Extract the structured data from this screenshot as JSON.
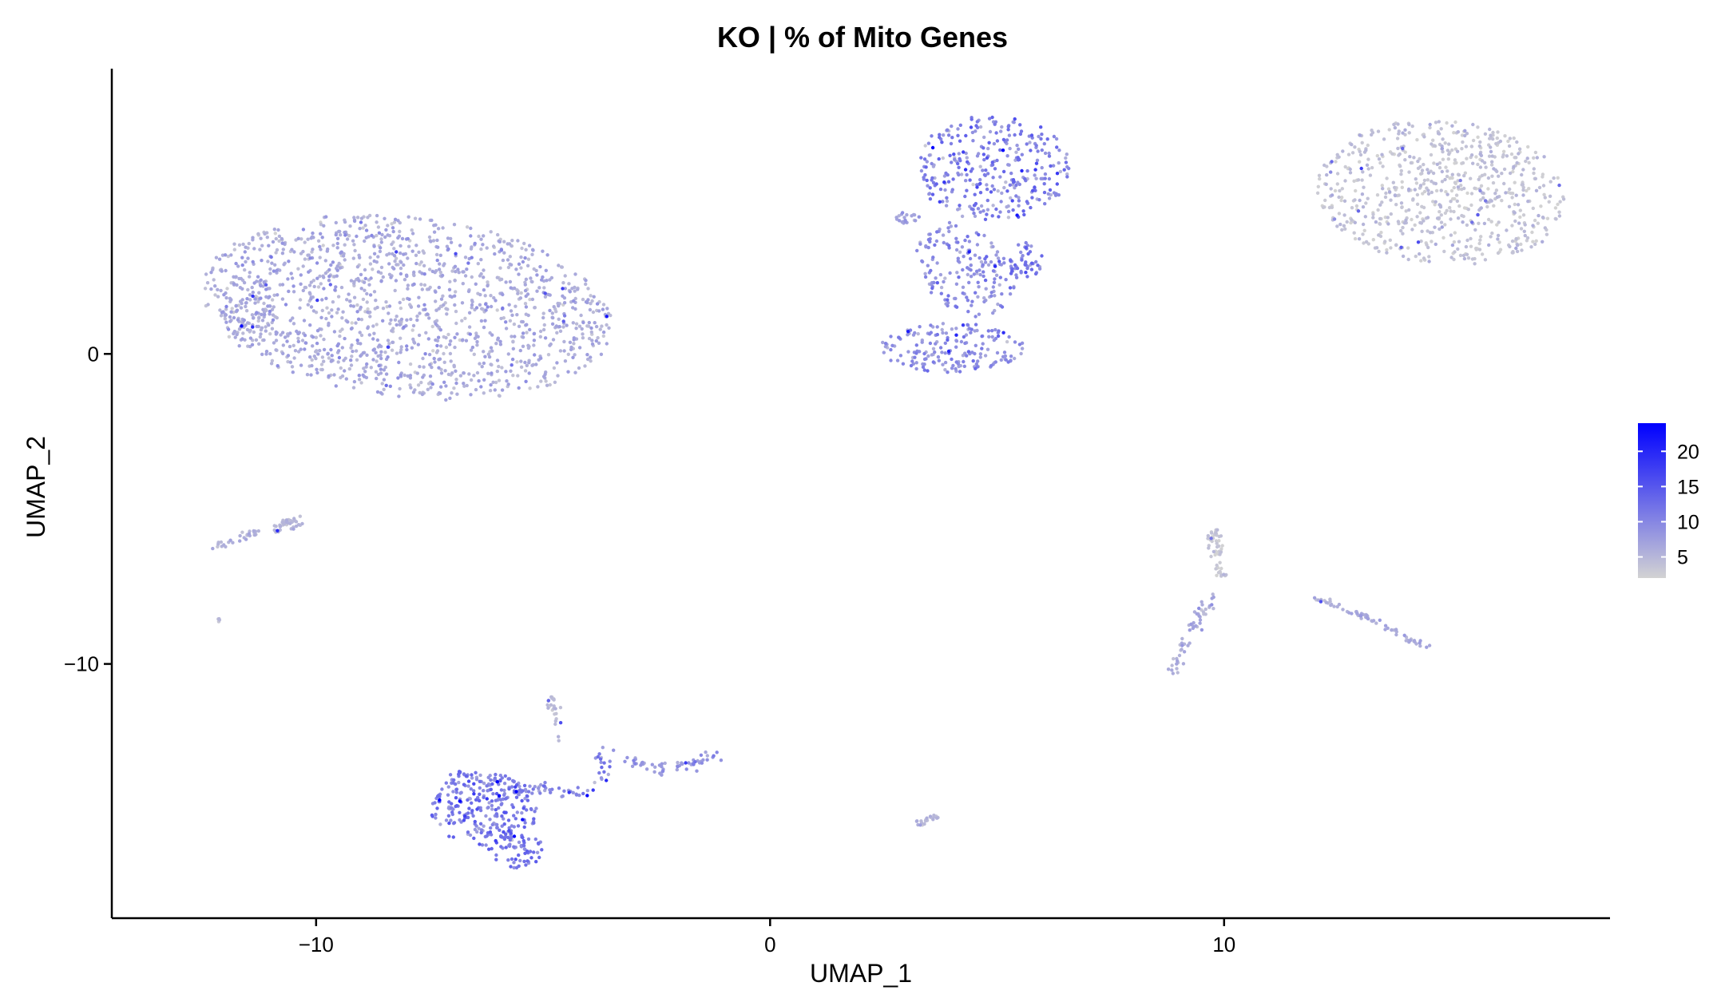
{
  "chart_data": {
    "type": "scatter",
    "title": "KO | % of Mito Genes",
    "xlabel": "UMAP_1",
    "ylabel": "UMAP_2",
    "xlim": [
      -14.5,
      18.5
    ],
    "ylim": [
      -18.2,
      9.2
    ],
    "x_ticks": [
      -10,
      0,
      10
    ],
    "y_ticks": [
      0,
      -10
    ],
    "tick_labels": {
      "x": [
        "−10",
        "0",
        "10"
      ],
      "y": [
        "0",
        "−10"
      ]
    },
    "grid": false,
    "legend": {
      "position": "right",
      "type": "colorbar",
      "range": [
        2,
        24
      ],
      "ticks": [
        5,
        10,
        15,
        20
      ],
      "tick_labels": [
        "5",
        "10",
        "15",
        "20"
      ],
      "color_low": "#d3d3d3",
      "color_high": "#0000ff"
    },
    "clusters": [
      {
        "shape": "ellipse",
        "cx": -8.0,
        "cy": 1.5,
        "rx": 4.6,
        "ry": 2.9,
        "rot": -12,
        "count": 1400,
        "value_mean": 6,
        "value_sd": 1.5
      },
      {
        "shape": "ellipse",
        "cx": -11.5,
        "cy": 1.5,
        "rx": 0.6,
        "ry": 1.1,
        "rot": 0,
        "count": 90,
        "value_mean": 6,
        "value_sd": 1.2
      },
      {
        "shape": "ellipse",
        "cx": 4.9,
        "cy": 6.0,
        "rx": 1.7,
        "ry": 1.7,
        "rot": 0,
        "count": 320,
        "value_mean": 10,
        "value_sd": 3
      },
      {
        "shape": "ellipse",
        "cx": 4.3,
        "cy": 2.7,
        "rx": 1.0,
        "ry": 1.6,
        "rot": 20,
        "count": 170,
        "value_mean": 9,
        "value_sd": 2
      },
      {
        "shape": "ellipse",
        "cx": 4.0,
        "cy": 0.2,
        "rx": 1.6,
        "ry": 0.8,
        "rot": 0,
        "count": 180,
        "value_mean": 9,
        "value_sd": 2
      },
      {
        "shape": "ellipse",
        "cx": 5.6,
        "cy": 3.0,
        "rx": 0.4,
        "ry": 0.6,
        "rot": 0,
        "count": 50,
        "value_mean": 11,
        "value_sd": 2
      },
      {
        "shape": "ellipse",
        "cx": 3.0,
        "cy": 4.4,
        "rx": 0.3,
        "ry": 0.2,
        "rot": 0,
        "count": 20,
        "value_mean": 7,
        "value_sd": 1
      },
      {
        "shape": "ellipse",
        "cx": 14.8,
        "cy": 5.2,
        "rx": 2.8,
        "ry": 2.3,
        "rot": -15,
        "count": 700,
        "value_mean": 3.5,
        "value_sd": 1.2
      },
      {
        "shape": "ellipse",
        "cx": -6.3,
        "cy": -14.7,
        "rx": 1.2,
        "ry": 1.2,
        "rot": 0,
        "count": 240,
        "value_mean": 11,
        "value_sd": 2.5
      },
      {
        "shape": "ellipse",
        "cx": -5.6,
        "cy": -16.0,
        "rx": 0.6,
        "ry": 0.6,
        "rot": 0,
        "count": 70,
        "value_mean": 12,
        "value_sd": 2
      },
      {
        "shape": "ellipse",
        "cx": -4.8,
        "cy": -11.3,
        "rx": 0.12,
        "ry": 0.25,
        "rot": 0,
        "count": 15,
        "value_mean": 4,
        "value_sd": 1
      },
      {
        "shape": "ellipse",
        "cx": 9.8,
        "cy": -6.1,
        "rx": 0.18,
        "ry": 0.5,
        "rot": 0,
        "count": 40,
        "value_mean": 3,
        "value_sd": 1
      },
      {
        "shape": "ellipse",
        "cx": -10.6,
        "cy": -5.5,
        "rx": 0.35,
        "ry": 0.18,
        "rot": 0,
        "count": 20,
        "value_mean": 5,
        "value_sd": 1
      },
      {
        "shape": "line",
        "path": [
          [
            -4.7,
            -11.3
          ],
          [
            -4.7,
            -12.5
          ]
        ],
        "count": 10,
        "spread": 0.06,
        "value_mean": 4,
        "value_sd": 1
      },
      {
        "shape": "line",
        "path": [
          [
            -7.0,
            -13.5
          ],
          [
            -5.3,
            -14.0
          ],
          [
            -4.0,
            -14.2
          ],
          [
            -3.7,
            -13.7
          ],
          [
            -3.7,
            -12.7
          ]
        ],
        "count": 90,
        "spread": 0.1,
        "value_mean": 10,
        "value_sd": 2
      },
      {
        "shape": "line",
        "path": [
          [
            -3.1,
            -13.1
          ],
          [
            -2.4,
            -13.4
          ],
          [
            -1.9,
            -13.3
          ],
          [
            -1.1,
            -12.9
          ]
        ],
        "count": 60,
        "spread": 0.08,
        "value_mean": 8,
        "value_sd": 1.5
      },
      {
        "shape": "line",
        "path": [
          [
            3.2,
            -15.2
          ],
          [
            3.7,
            -14.9
          ]
        ],
        "count": 20,
        "spread": 0.05,
        "value_mean": 5,
        "value_sd": 1
      },
      {
        "shape": "line",
        "path": [
          [
            -12.2,
            -6.2
          ],
          [
            -11.3,
            -5.7
          ]
        ],
        "count": 30,
        "spread": 0.06,
        "value_mean": 5,
        "value_sd": 1
      },
      {
        "shape": "line",
        "path": [
          [
            -10.9,
            -5.7
          ],
          [
            -10.5,
            -5.3
          ]
        ],
        "count": 20,
        "spread": 0.06,
        "value_mean": 5,
        "value_sd": 1
      },
      {
        "shape": "line",
        "path": [
          [
            -12.2,
            -8.5
          ],
          [
            -12.1,
            -8.6
          ]
        ],
        "count": 4,
        "spread": 0.03,
        "value_mean": 4,
        "value_sd": 1
      },
      {
        "shape": "line",
        "path": [
          [
            9.8,
            -6.8
          ],
          [
            10.0,
            -7.2
          ]
        ],
        "count": 15,
        "spread": 0.07,
        "value_mean": 3,
        "value_sd": 1
      },
      {
        "shape": "line",
        "path": [
          [
            9.8,
            -7.8
          ],
          [
            9.2,
            -9.0
          ],
          [
            8.9,
            -10.3
          ]
        ],
        "count": 55,
        "spread": 0.07,
        "value_mean": 6,
        "value_sd": 1.5
      },
      {
        "shape": "line",
        "path": [
          [
            12.0,
            -7.9
          ],
          [
            13.0,
            -8.4
          ],
          [
            14.5,
            -9.5
          ]
        ],
        "count": 70,
        "spread": 0.05,
        "value_mean": 6,
        "value_sd": 1.2
      }
    ]
  }
}
